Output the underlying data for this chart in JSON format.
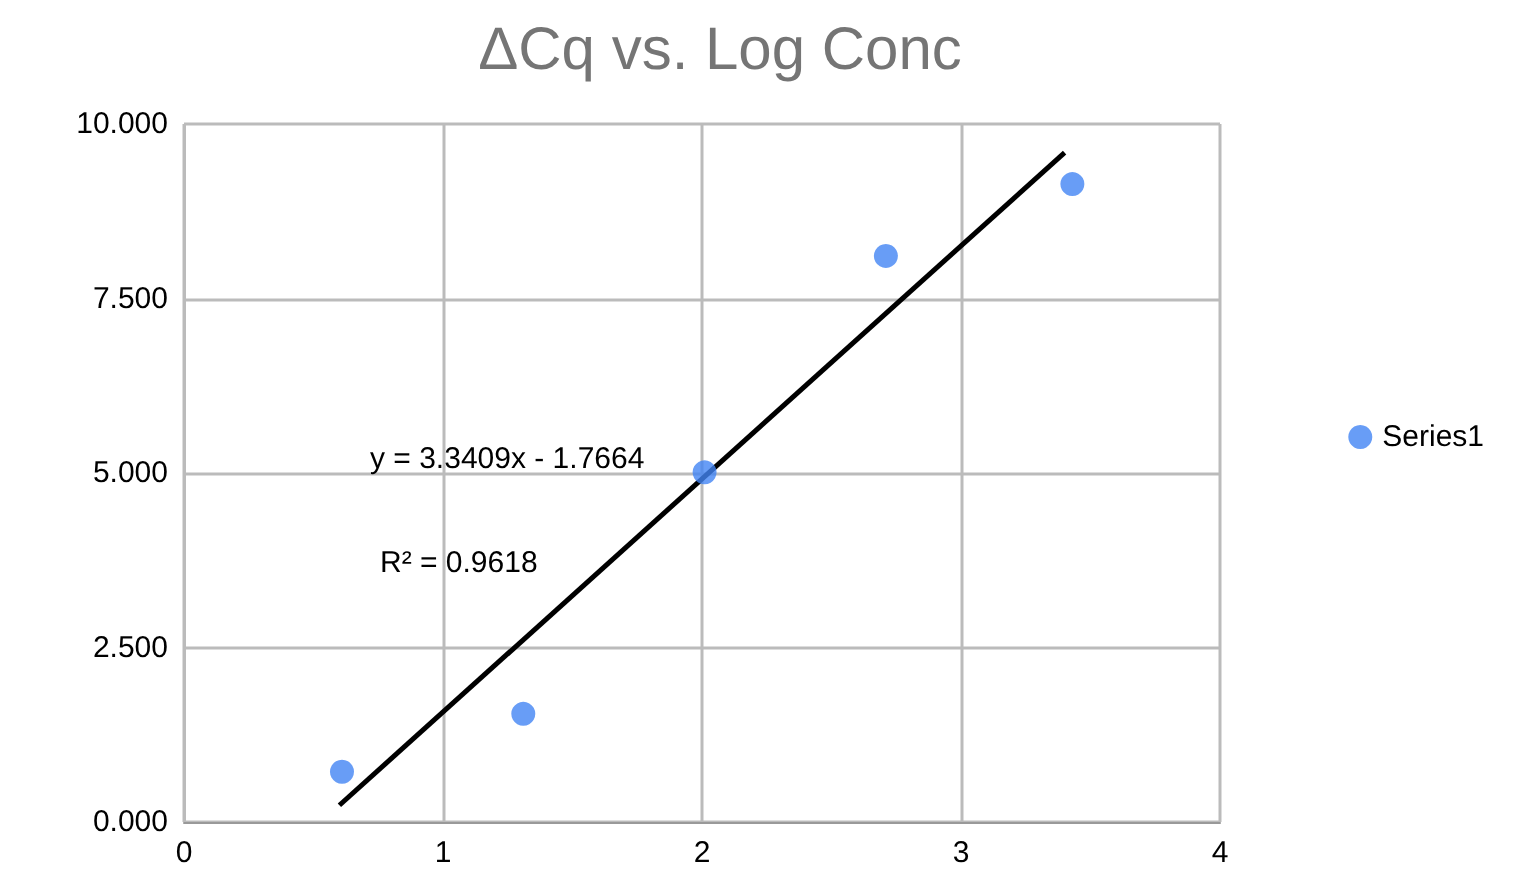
{
  "chart_data": {
    "type": "scatter",
    "title": "ΔCq vs. Log Conc",
    "series": [
      {
        "name": "Series1",
        "color": "#4285f4",
        "x": [
          0.61,
          1.31,
          2.01,
          2.71,
          3.43
        ],
        "values": [
          0.72,
          1.55,
          5.01,
          8.11,
          9.14
        ]
      },
      {
        "type": "line",
        "color": "#000000",
        "marker": "none",
        "x": [
          0.6,
          3.4
        ],
        "values": [
          0.24,
          9.59
        ]
      }
    ],
    "xlim": [
      0,
      4
    ],
    "xticks": [
      0,
      1,
      2,
      3,
      4
    ],
    "ylim": [
      0,
      10
    ],
    "yticks": [
      {
        "value": 0,
        "label": "0.000"
      },
      {
        "value": 2.5,
        "label": "2.500"
      },
      {
        "value": 5,
        "label": "5.000"
      },
      {
        "value": 7.5,
        "label": "7.500"
      },
      {
        "value": 10,
        "label": "10.000"
      }
    ],
    "annotations": [
      "y = 3.3409x - 1.7664",
      "R² = 0.9618"
    ],
    "grid": true,
    "legend": "right",
    "marker": "circle"
  }
}
